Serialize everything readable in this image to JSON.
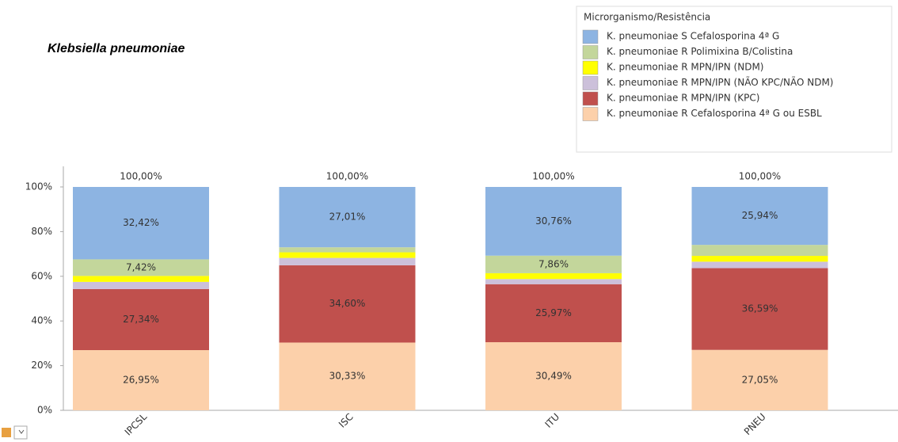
{
  "chart_data": {
    "type": "stacked_bar",
    "title": "Klebsiella pneumoniae",
    "legend_title": "Microrganismo/Resistência",
    "legend": "top-right",
    "categories": [
      "IPCSL",
      "ISC",
      "ITU",
      "PNEU"
    ],
    "ylim": [
      0,
      100
    ],
    "yticks": [
      {
        "value": 0,
        "label": "0%"
      },
      {
        "value": 20,
        "label": "20%"
      },
      {
        "value": 40,
        "label": "40%"
      },
      {
        "value": 60,
        "label": "60%"
      },
      {
        "value": 80,
        "label": "80%"
      },
      {
        "value": 100,
        "label": "100%"
      }
    ],
    "totals": [
      100,
      100,
      100,
      100
    ],
    "total_labels": [
      "100,00%",
      "100,00%",
      "100,00%",
      "100,00%"
    ],
    "series": [
      {
        "name": "K. pneumoniae R Cefalosporina 4ª G ou ESBL",
        "color": "#fcd0aa",
        "values": [
          26.95,
          30.33,
          30.49,
          27.05
        ],
        "value_labels": [
          "26,95%",
          "30,33%",
          "30,49%",
          "27,05%"
        ]
      },
      {
        "name": "K. pneumoniae R MPN/IPN (KPC)",
        "color": "#c0504d",
        "values": [
          27.34,
          34.6,
          25.97,
          36.59
        ],
        "value_labels": [
          "27,34%",
          "34,60%",
          "25,97%",
          "36,59%"
        ]
      },
      {
        "name": "K. pneumoniae R MPN/IPN (NÃO KPC/NÃO NDM)",
        "color": "#ccc0da",
        "values": [
          3.2,
          3.3,
          2.3,
          2.9
        ],
        "value_labels": [
          null,
          null,
          null,
          null
        ]
      },
      {
        "name": "K. pneumoniae R MPN/IPN (NDM)",
        "color": "#ffff00",
        "values": [
          2.67,
          2.5,
          2.62,
          2.6
        ],
        "value_labels": [
          null,
          null,
          null,
          null
        ]
      },
      {
        "name": "K. pneumoniae R Polimixina B/Colistina",
        "color": "#c3d69b",
        "values": [
          7.42,
          2.26,
          7.86,
          4.92
        ],
        "value_labels": [
          "7,42%",
          null,
          "7,86%",
          null
        ]
      },
      {
        "name": "K. pneumoniae S Cefalosporina 4ª G",
        "color": "#8db4e2",
        "values": [
          32.42,
          27.01,
          30.76,
          25.94
        ],
        "value_labels": [
          "32,42%",
          "27,01%",
          "30,76%",
          "25,94%"
        ]
      }
    ]
  }
}
